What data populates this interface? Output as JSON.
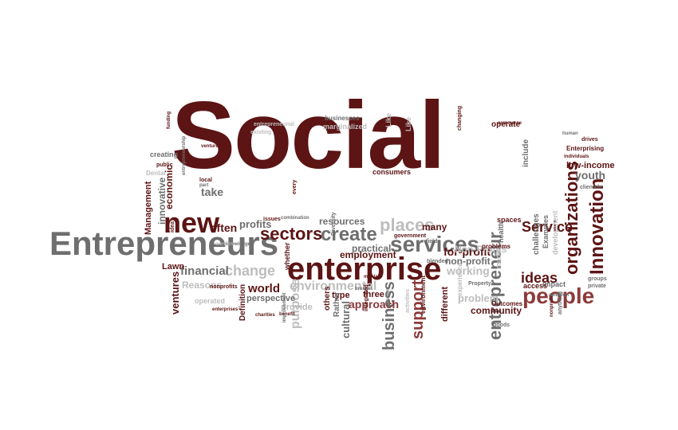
{
  "title": "",
  "colors": {
    "dark_red": "#5c1414",
    "gray": "#6e6e6e",
    "light_gray": "#bdbdbd",
    "light_red": "#c9a9a9",
    "mid_red": "#8c3a3a"
  },
  "words": [
    {
      "text": "Social",
      "color": "dark_red"
    },
    {
      "text": "Entrepreneurs",
      "color": "gray"
    },
    {
      "text": "enterprise",
      "color": "dark_red"
    },
    {
      "text": "new",
      "color": "dark_red"
    },
    {
      "text": "services",
      "color": "gray"
    },
    {
      "text": "people",
      "color": "mid_red"
    },
    {
      "text": "sectors",
      "color": "dark_red"
    },
    {
      "text": "create",
      "color": "gray"
    },
    {
      "text": "places",
      "color": "light_gray"
    },
    {
      "text": "Innovation",
      "color": "dark_red"
    },
    {
      "text": "organizations",
      "color": "dark_red"
    },
    {
      "text": "entrepreneur",
      "color": "gray"
    },
    {
      "text": "Service",
      "color": "dark_red"
    },
    {
      "text": "business",
      "color": "gray"
    },
    {
      "text": "support",
      "color": "mid_red"
    },
    {
      "text": "ideas",
      "color": "dark_red"
    },
    {
      "text": "change",
      "color": "light_gray"
    },
    {
      "text": "financial",
      "color": "gray"
    },
    {
      "text": "for-profit",
      "color": "dark_red"
    },
    {
      "text": "often",
      "color": "dark_red"
    },
    {
      "text": "profits",
      "color": "gray"
    },
    {
      "text": "take",
      "color": "gray"
    },
    {
      "text": "economic",
      "color": "dark_red"
    },
    {
      "text": "resources",
      "color": "gray"
    },
    {
      "text": "employment",
      "color": "dark_red"
    },
    {
      "text": "working",
      "color": "light_gray"
    },
    {
      "text": "non-profit",
      "color": "gray"
    },
    {
      "text": "problem",
      "color": "light_gray"
    },
    {
      "text": "many",
      "color": "dark_red"
    },
    {
      "text": "practical",
      "color": "gray"
    },
    {
      "text": "approach",
      "color": "mid_red"
    },
    {
      "text": "community",
      "color": "dark_red"
    },
    {
      "text": "cultural",
      "color": "gray"
    },
    {
      "text": "world",
      "color": "dark_red"
    },
    {
      "text": "purpose",
      "color": "light_gray"
    },
    {
      "text": "environmental",
      "color": "light_gray"
    },
    {
      "text": "perspective",
      "color": "gray"
    },
    {
      "text": "provide",
      "color": "light_gray"
    },
    {
      "text": "Reasons",
      "color": "light_gray"
    },
    {
      "text": "ventures",
      "color": "dark_red"
    },
    {
      "text": "Lawn",
      "color": "dark_red"
    },
    {
      "text": "Management",
      "color": "dark_red"
    },
    {
      "text": "innovative",
      "color": "gray"
    },
    {
      "text": "youth",
      "color": "gray"
    },
    {
      "text": "low-income",
      "color": "dark_red"
    },
    {
      "text": "Enterprising",
      "color": "dark_red"
    },
    {
      "text": "spaces",
      "color": "dark_red"
    },
    {
      "text": "operate",
      "color": "dark_red"
    },
    {
      "text": "include",
      "color": "gray"
    },
    {
      "text": "three",
      "color": "dark_red"
    },
    {
      "text": "type",
      "color": "dark_red"
    },
    {
      "text": "marginalized",
      "color": "light_gray"
    },
    {
      "text": "businesses",
      "color": "gray"
    },
    {
      "text": "creating",
      "color": "gray"
    },
    {
      "text": "Dental",
      "color": "light_gray"
    },
    {
      "text": "challenges",
      "color": "gray"
    },
    {
      "text": "development",
      "color": "light_gray"
    },
    {
      "text": "Examples",
      "color": "gray"
    },
    {
      "text": "impact",
      "color": "gray"
    },
    {
      "text": "access",
      "color": "dark_red"
    },
    {
      "text": "Definition",
      "color": "dark_red"
    },
    {
      "text": "Outcomes",
      "color": "dark_red"
    },
    {
      "text": "Non-Profits",
      "color": "light_gray"
    },
    {
      "text": "nonprofits",
      "color": "dark_red"
    },
    {
      "text": "others",
      "color": "dark_red"
    },
    {
      "text": "different",
      "color": "dark_red"
    },
    {
      "text": "whether",
      "color": "dark_red"
    },
    {
      "text": "Rather",
      "color": "gray"
    },
    {
      "text": "operated",
      "color": "light_gray"
    },
    {
      "text": "market",
      "color": "light_gray"
    },
    {
      "text": "health",
      "color": "gray"
    },
    {
      "text": "consumers",
      "color": "dark_red"
    },
    {
      "text": "government",
      "color": "dark_red"
    },
    {
      "text": "problems",
      "color": "dark_red"
    },
    {
      "text": "groups",
      "color": "gray"
    },
    {
      "text": "private",
      "color": "gray"
    },
    {
      "text": "clientele",
      "color": "gray"
    },
    {
      "text": "drives",
      "color": "dark_red"
    },
    {
      "text": "human",
      "color": "gray"
    },
    {
      "text": "commerce",
      "color": "dark_red"
    },
    {
      "text": "changing",
      "color": "dark_red"
    },
    {
      "text": "existing",
      "color": "light_gray"
    },
    {
      "text": "entrepreneurial",
      "color": "light_gray"
    },
    {
      "text": "Like",
      "color": "light_gray"
    },
    {
      "text": "Like",
      "color": "light_gray"
    },
    {
      "text": "issues",
      "color": "dark_red"
    },
    {
      "text": "combination",
      "color": "gray"
    },
    {
      "text": "Diversity",
      "color": "gray"
    },
    {
      "text": "breaker",
      "color": "gray"
    },
    {
      "text": "experience",
      "color": "light_gray"
    },
    {
      "text": "fields",
      "color": "gray"
    },
    {
      "text": "local",
      "color": "dark_red"
    },
    {
      "text": "part",
      "color": "gray"
    },
    {
      "text": "public",
      "color": "dark_red"
    },
    {
      "text": "idea",
      "color": "dark_red"
    },
    {
      "text": "every",
      "color": "dark_red"
    },
    {
      "text": "Property",
      "color": "gray"
    },
    {
      "text": "goods",
      "color": "gray"
    },
    {
      "text": "blended",
      "color": "gray"
    },
    {
      "text": "mental",
      "color": "dark_red"
    },
    {
      "text": "benefit",
      "color": "dark_red"
    },
    {
      "text": "charities",
      "color": "dark_red"
    },
    {
      "text": "knowledge",
      "color": "gray"
    },
    {
      "text": "workers",
      "color": "light_gray"
    },
    {
      "text": "environment",
      "color": "dark_red"
    },
    {
      "text": "integrated",
      "color": "dark_red"
    },
    {
      "text": "activities",
      "color": "light_gray"
    },
    {
      "text": "individuals",
      "color": "dark_red"
    },
    {
      "text": "funding",
      "color": "dark_red"
    },
    {
      "text": "ambition",
      "color": "gray"
    },
    {
      "text": "anything",
      "color": "gray"
    },
    {
      "text": "venture",
      "color": "dark_red"
    },
    {
      "text": "entrepreneurship",
      "color": "gray"
    },
    {
      "text": "mission",
      "color": "gray"
    },
    {
      "text": "improvement",
      "color": "gray"
    },
    {
      "text": "enterprises",
      "color": "dark_red"
    },
    {
      "text": "nonprofit",
      "color": "dark_red"
    }
  ]
}
